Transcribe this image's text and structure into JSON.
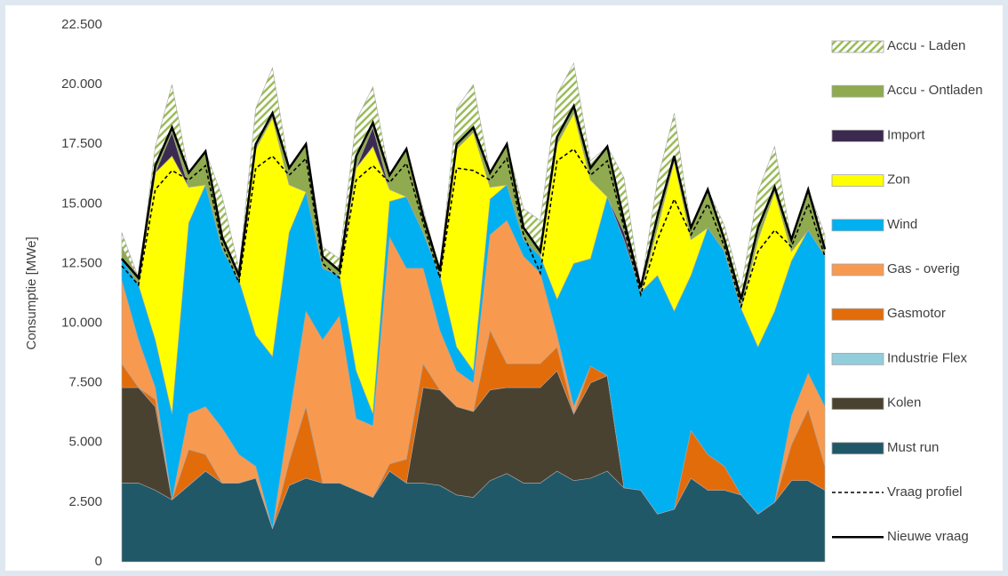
{
  "chart_data": {
    "type": "stacked_area",
    "y_label": "Consumptie [MWe]",
    "ylim": [
      0,
      22500
    ],
    "yticks": [
      0,
      {
        "value": 2500,
        "label": "2.500"
      },
      {
        "value": 5000,
        "label": "5.000"
      },
      {
        "value": 7500,
        "label": "7.500"
      },
      {
        "value": 10000,
        "label": "10.000"
      },
      {
        "value": 12500,
        "label": "12.500"
      },
      {
        "value": 15000,
        "label": "15.000"
      },
      {
        "value": 17500,
        "label": "17.500"
      },
      {
        "value": 20000,
        "label": "20.000"
      },
      {
        "value": 22500,
        "label": "22.500"
      }
    ],
    "grid": false,
    "legend": "right",
    "series": [
      {
        "name": "Must run",
        "type": "area",
        "color": "#215868",
        "values": [
          3300,
          3300,
          3000,
          2600,
          3200,
          3800,
          3300,
          3300,
          3500,
          1400,
          3200,
          3500,
          3300,
          3300,
          3000,
          2700,
          3800,
          3300,
          3300,
          3200,
          2800,
          2700,
          3400,
          3700,
          3300,
          3300,
          3800,
          3400,
          3500,
          3800,
          3100,
          3000,
          2000,
          2200,
          3500,
          3000,
          3000,
          2800,
          2000,
          2500,
          3400,
          3400,
          3000
        ]
      },
      {
        "name": "Kolen",
        "type": "area",
        "color": "#4a4230",
        "values": [
          4000,
          4000,
          3500,
          0,
          0,
          0,
          0,
          0,
          0,
          0,
          0,
          0,
          0,
          0,
          0,
          0,
          0,
          0,
          4000,
          4000,
          3700,
          3600,
          3800,
          3600,
          4000,
          4000,
          4200,
          2800,
          4000,
          4000,
          0,
          0,
          0,
          0,
          0,
          0,
          0,
          0,
          0,
          0,
          0,
          0,
          0
        ]
      },
      {
        "name": "Industrie Flex",
        "type": "area",
        "color": "#92cddc",
        "values": [
          0,
          0,
          0,
          0,
          0,
          0,
          0,
          0,
          0,
          0,
          0,
          0,
          0,
          0,
          0,
          0,
          0,
          0,
          0,
          0,
          0,
          0,
          0,
          0,
          0,
          0,
          0,
          0,
          0,
          0,
          0,
          0,
          0,
          0,
          0,
          0,
          0,
          0,
          0,
          0,
          0,
          0,
          0
        ]
      },
      {
        "name": "Gasmotor",
        "type": "area",
        "color": "#e36c0a",
        "values": [
          1000,
          0,
          300,
          0,
          1500,
          700,
          0,
          0,
          0,
          0,
          1000,
          3000,
          0,
          0,
          0,
          0,
          300,
          1000,
          1000,
          0,
          0,
          0,
          2500,
          1000,
          1000,
          1000,
          1000,
          0,
          700,
          0,
          0,
          0,
          0,
          0,
          2000,
          1500,
          1000,
          0,
          0,
          0,
          1500,
          3000,
          1000
        ]
      },
      {
        "name": "Gas - overig",
        "type": "area",
        "color": "#f79a50",
        "values": [
          3500,
          2000,
          500,
          0,
          1500,
          2000,
          2300,
          1200,
          500,
          0,
          1800,
          4000,
          6000,
          7000,
          3000,
          3000,
          9500,
          8000,
          4000,
          2500,
          1500,
          1200,
          4000,
          6000,
          4500,
          3800,
          500,
          300,
          0,
          0,
          0,
          0,
          0,
          0,
          0,
          0,
          0,
          0,
          0,
          0,
          1200,
          1500,
          2500
        ]
      },
      {
        "name": "Wind",
        "type": "area",
        "color": "#00b0f0",
        "values": [
          900,
          2300,
          2000,
          3600,
          8000,
          9300,
          7500,
          7300,
          5500,
          7200,
          7800,
          5000,
          3000,
          1700,
          2000,
          500,
          1500,
          3000,
          1500,
          2300,
          1000,
          500,
          1500,
          1500,
          700,
          700,
          1500,
          6000,
          4500,
          7500,
          10400,
          8300,
          10000,
          8300,
          6500,
          9500,
          9000,
          7800,
          7000,
          8000,
          6500,
          6000,
          6300
        ]
      },
      {
        "name": "Zon",
        "type": "area",
        "color": "#ffff00",
        "values": [
          0,
          0,
          7000,
          10800,
          1500,
          0,
          0,
          0,
          7800,
          10000,
          2000,
          0,
          0,
          0,
          8500,
          11200,
          500,
          0,
          0,
          0,
          8300,
          10000,
          500,
          0,
          0,
          0,
          6500,
          6300,
          3300,
          0,
          0,
          0,
          2000,
          6300,
          1500,
          0,
          0,
          0,
          4500,
          5000,
          400,
          0,
          0
        ]
      },
      {
        "name": "Import",
        "type": "area",
        "color": "#3b2a4f",
        "values": [
          0,
          0,
          0,
          1000,
          0,
          0,
          0,
          0,
          0,
          0,
          0,
          0,
          0,
          0,
          0,
          800,
          0,
          0,
          0,
          0,
          0,
          0,
          0,
          0,
          0,
          0,
          0,
          0,
          0,
          0,
          300,
          0,
          0,
          0,
          0,
          0,
          0,
          0,
          0,
          0,
          0,
          0,
          0
        ]
      },
      {
        "name": "Accu - Ontladen",
        "type": "area",
        "color": "#8faa4f",
        "values": [
          500,
          300,
          300,
          200,
          600,
          1400,
          500,
          200,
          200,
          200,
          700,
          2000,
          500,
          200,
          500,
          200,
          600,
          2000,
          700,
          200,
          200,
          200,
          600,
          1700,
          500,
          200,
          300,
          300,
          500,
          2100,
          500,
          200,
          500,
          200,
          500,
          1600,
          500,
          400,
          500,
          200,
          500,
          1700,
          300
        ]
      },
      {
        "name": "Accu - Laden",
        "type": "area",
        "color": "#9bbb59",
        "pattern": "hatch",
        "values": [
          600,
          0,
          800,
          1800,
          0,
          0,
          1700,
          300,
          1500,
          1900,
          0,
          0,
          400,
          500,
          1500,
          1500,
          0,
          0,
          300,
          0,
          1500,
          1800,
          0,
          0,
          800,
          1300,
          1800,
          1800,
          300,
          0,
          1800,
          0,
          1500,
          1800,
          0,
          0,
          600,
          500,
          1500,
          1700,
          0,
          0,
          600
        ]
      },
      {
        "name": "Vraag profiel",
        "type": "line",
        "dashed": true,
        "color": "#000000",
        "values": [
          12400,
          11600,
          15600,
          16400,
          16000,
          16600,
          13300,
          11700,
          16500,
          17000,
          16200,
          16900,
          12500,
          11900,
          16000,
          16600,
          15900,
          16700,
          14200,
          11900,
          16500,
          16400,
          16000,
          16900,
          13700,
          12100,
          16800,
          17300,
          16200,
          16800,
          14000,
          11200,
          13500,
          15200,
          13700,
          15000,
          13200,
          10700,
          13000,
          13900,
          13200,
          15000,
          12800
        ]
      },
      {
        "name": "Nieuwe vraag",
        "type": "line",
        "dashed": false,
        "color": "#000000",
        "values": [
          12700,
          11900,
          16600,
          18200,
          16300,
          17200,
          13600,
          12000,
          17500,
          18800,
          16500,
          17500,
          12800,
          12200,
          17000,
          18400,
          16200,
          17300,
          14500,
          12200,
          17500,
          18200,
          16300,
          17500,
          14000,
          13000,
          17800,
          19100,
          16500,
          17400,
          14300,
          11500,
          14500,
          17000,
          14000,
          15600,
          13500,
          11000,
          14000,
          15700,
          13500,
          15600,
          13100
        ]
      }
    ]
  }
}
